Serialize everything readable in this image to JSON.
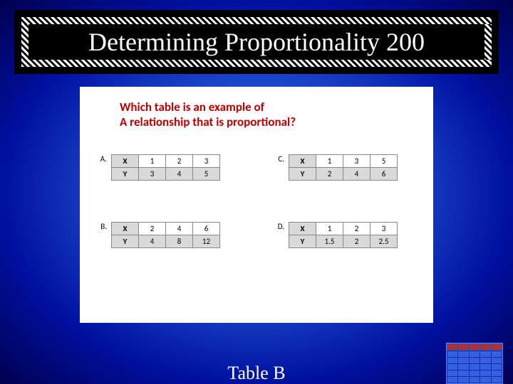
{
  "title": "Determining Proportionality 200",
  "question_line1": "Which table is an example of",
  "question_line2": "A relationship that is proportional?",
  "question_color": "#c00000",
  "answer": "Table B",
  "tables": {
    "A": {
      "label": "A.",
      "x": [
        "X",
        "1",
        "2",
        "3"
      ],
      "y": [
        "Y",
        "3",
        "4",
        "5"
      ]
    },
    "B": {
      "label": "B.",
      "x": [
        "X",
        "2",
        "4",
        "6"
      ],
      "y": [
        "Y",
        "4",
        "8",
        "12"
      ]
    },
    "C": {
      "label": "C.",
      "x": [
        "X",
        "1",
        "3",
        "5"
      ],
      "y": [
        "Y",
        "2",
        "4",
        "6"
      ]
    },
    "D": {
      "label": "D.",
      "x": [
        "X",
        "1",
        "2",
        "3"
      ],
      "y": [
        "Y",
        "1.5",
        "2",
        "2.5"
      ]
    }
  },
  "colors": {
    "header_cell": "#d9d9d9",
    "table_border": "#888888",
    "title_text": "#ffffff",
    "answer_text": "#ffffff",
    "bg_inner": "#5a8fff",
    "bg_outer": "#000050"
  }
}
